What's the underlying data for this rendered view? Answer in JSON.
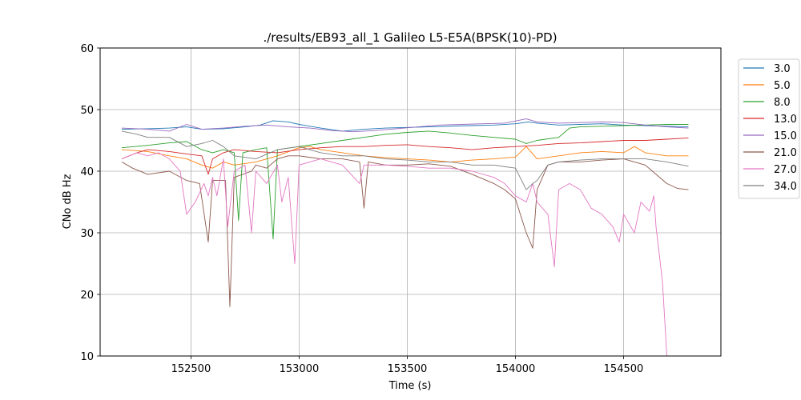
{
  "chart_data": {
    "type": "line",
    "title": "./results/EB93_all_1 Galileo L5-E5A(BPSK(10)-PD)",
    "xlabel": "Time (s)",
    "ylabel": "CNo dB Hz",
    "xlim": [
      152080,
      154950
    ],
    "ylim": [
      10,
      60
    ],
    "xticks": [
      152500,
      153000,
      153500,
      154000,
      154500
    ],
    "xtick_labels": [
      "152500",
      "153000",
      "153500",
      "154000",
      "154500"
    ],
    "yticks": [
      10,
      20,
      30,
      40,
      50,
      60
    ],
    "ytick_labels": [
      "10",
      "20",
      "30",
      "40",
      "50",
      "60"
    ],
    "grid": true,
    "legend_position": "outside-top-right",
    "series": [
      {
        "name": "3.0",
        "color": "#1f77b4",
        "points": [
          [
            152180,
            46.8
          ],
          [
            152300,
            46.9
          ],
          [
            152400,
            47
          ],
          [
            152480,
            47.2
          ],
          [
            152550,
            46.8
          ],
          [
            152650,
            46.9
          ],
          [
            152750,
            47.2
          ],
          [
            152820,
            47.5
          ],
          [
            152880,
            48.2
          ],
          [
            152950,
            48
          ],
          [
            153000,
            47.6
          ],
          [
            153100,
            47
          ],
          [
            153200,
            46.5
          ],
          [
            153300,
            46.8
          ],
          [
            153400,
            47
          ],
          [
            153500,
            47.1
          ],
          [
            153600,
            47.2
          ],
          [
            153700,
            47.3
          ],
          [
            153800,
            47.4
          ],
          [
            153900,
            47.5
          ],
          [
            154000,
            47.7
          ],
          [
            154060,
            48
          ],
          [
            154100,
            47.8
          ],
          [
            154200,
            47.5
          ],
          [
            154300,
            47.6
          ],
          [
            154400,
            47.7
          ],
          [
            154500,
            47.5
          ],
          [
            154600,
            47.4
          ],
          [
            154700,
            47.3
          ],
          [
            154800,
            47.2
          ]
        ]
      },
      {
        "name": "5.0",
        "color": "#ff7f0e",
        "points": [
          [
            152180,
            43.5
          ],
          [
            152300,
            43.2
          ],
          [
            152400,
            42.5
          ],
          [
            152480,
            42
          ],
          [
            152550,
            41
          ],
          [
            152600,
            40.5
          ],
          [
            152650,
            41.5
          ],
          [
            152700,
            41
          ],
          [
            152800,
            41.5
          ],
          [
            152900,
            42.5
          ],
          [
            153000,
            43.8
          ],
          [
            153050,
            44
          ],
          [
            153100,
            43.5
          ],
          [
            153200,
            43
          ],
          [
            153300,
            42.5
          ],
          [
            153400,
            42.2
          ],
          [
            153500,
            42
          ],
          [
            153600,
            41.8
          ],
          [
            153700,
            41.5
          ],
          [
            153800,
            41.8
          ],
          [
            153900,
            42
          ],
          [
            154000,
            42.3
          ],
          [
            154050,
            44
          ],
          [
            154100,
            42
          ],
          [
            154200,
            42.5
          ],
          [
            154300,
            43
          ],
          [
            154400,
            43.2
          ],
          [
            154500,
            43
          ],
          [
            154550,
            44
          ],
          [
            154600,
            43
          ],
          [
            154700,
            42.5
          ],
          [
            154800,
            42.5
          ]
        ]
      },
      {
        "name": "8.0",
        "color": "#2ca02c",
        "points": [
          [
            152180,
            43.8
          ],
          [
            152300,
            44.2
          ],
          [
            152400,
            44.6
          ],
          [
            152480,
            44.8
          ],
          [
            152550,
            43.5
          ],
          [
            152600,
            43
          ],
          [
            152650,
            43.5
          ],
          [
            152700,
            43
          ],
          [
            152720,
            32
          ],
          [
            152740,
            43
          ],
          [
            152800,
            43.5
          ],
          [
            152850,
            43.8
          ],
          [
            152880,
            29
          ],
          [
            152900,
            43.5
          ],
          [
            153000,
            44
          ],
          [
            153100,
            44.5
          ],
          [
            153200,
            45
          ],
          [
            153300,
            45.5
          ],
          [
            153400,
            46
          ],
          [
            153500,
            46.3
          ],
          [
            153600,
            46.5
          ],
          [
            153700,
            46.2
          ],
          [
            153800,
            45.8
          ],
          [
            153900,
            45.5
          ],
          [
            154000,
            45.2
          ],
          [
            154050,
            44.5
          ],
          [
            154100,
            45
          ],
          [
            154200,
            45.5
          ],
          [
            154250,
            47
          ],
          [
            154300,
            47.2
          ],
          [
            154400,
            47.3
          ],
          [
            154500,
            47.4
          ],
          [
            154600,
            47.5
          ],
          [
            154700,
            47.6
          ],
          [
            154800,
            47.6
          ]
        ]
      },
      {
        "name": "13.0",
        "color": "#d62728",
        "points": [
          [
            152180,
            42
          ],
          [
            152250,
            43
          ],
          [
            152300,
            43.5
          ],
          [
            152400,
            43.2
          ],
          [
            152480,
            42.8
          ],
          [
            152550,
            42.5
          ],
          [
            152580,
            39.5
          ],
          [
            152600,
            42
          ],
          [
            152650,
            43
          ],
          [
            152700,
            43.5
          ],
          [
            152800,
            43.2
          ],
          [
            152900,
            43
          ],
          [
            153000,
            43.5
          ],
          [
            153100,
            43.8
          ],
          [
            153200,
            44
          ],
          [
            153300,
            44
          ],
          [
            153400,
            44.2
          ],
          [
            153500,
            44.3
          ],
          [
            153600,
            44
          ],
          [
            153700,
            43.8
          ],
          [
            153800,
            43.5
          ],
          [
            153900,
            43.8
          ],
          [
            154000,
            44
          ],
          [
            154100,
            44.2
          ],
          [
            154200,
            44.5
          ],
          [
            154300,
            44.6
          ],
          [
            154400,
            44.8
          ],
          [
            154500,
            45
          ],
          [
            154600,
            45
          ],
          [
            154700,
            45.2
          ],
          [
            154800,
            45.4
          ]
        ]
      },
      {
        "name": "15.0",
        "color": "#9467bd",
        "points": [
          [
            152180,
            47
          ],
          [
            152300,
            46.8
          ],
          [
            152400,
            46.5
          ],
          [
            152480,
            47.6
          ],
          [
            152550,
            46.8
          ],
          [
            152650,
            47
          ],
          [
            152750,
            47.3
          ],
          [
            152850,
            47.5
          ],
          [
            152950,
            47.2
          ],
          [
            153050,
            47
          ],
          [
            153150,
            46.6
          ],
          [
            153250,
            46.4
          ],
          [
            153350,
            46.6
          ],
          [
            153450,
            46.9
          ],
          [
            153550,
            47.2
          ],
          [
            153650,
            47.5
          ],
          [
            153750,
            47.6
          ],
          [
            153850,
            47.7
          ],
          [
            153950,
            47.8
          ],
          [
            154050,
            48.5
          ],
          [
            154100,
            48
          ],
          [
            154200,
            47.8
          ],
          [
            154300,
            47.9
          ],
          [
            154400,
            48
          ],
          [
            154500,
            47.9
          ],
          [
            154600,
            47.5
          ],
          [
            154700,
            47.2
          ],
          [
            154800,
            47
          ]
        ]
      },
      {
        "name": "21.0",
        "color": "#8c564b",
        "points": [
          [
            152180,
            41.5
          ],
          [
            152230,
            40.5
          ],
          [
            152300,
            39.5
          ],
          [
            152400,
            40
          ],
          [
            152480,
            38.5
          ],
          [
            152540,
            38
          ],
          [
            152580,
            28.5
          ],
          [
            152600,
            38.5
          ],
          [
            152660,
            38.5
          ],
          [
            152680,
            18
          ],
          [
            152700,
            39
          ],
          [
            152780,
            40
          ],
          [
            152800,
            41
          ],
          [
            152850,
            40.5
          ],
          [
            152900,
            42
          ],
          [
            152950,
            42.5
          ],
          [
            153000,
            42.5
          ],
          [
            153100,
            42
          ],
          [
            153200,
            42
          ],
          [
            153280,
            41.5
          ],
          [
            153300,
            34
          ],
          [
            153320,
            41.5
          ],
          [
            153400,
            41
          ],
          [
            153500,
            41
          ],
          [
            153600,
            41.2
          ],
          [
            153700,
            40.8
          ],
          [
            153800,
            39.5
          ],
          [
            153900,
            38
          ],
          [
            153950,
            37
          ],
          [
            154000,
            35.5
          ],
          [
            154050,
            30
          ],
          [
            154080,
            27.5
          ],
          [
            154100,
            37
          ],
          [
            154150,
            41
          ],
          [
            154200,
            41.5
          ],
          [
            154300,
            41.5
          ],
          [
            154400,
            41.8
          ],
          [
            154500,
            42
          ],
          [
            154600,
            41
          ],
          [
            154650,
            39.5
          ],
          [
            154700,
            38
          ],
          [
            154750,
            37.2
          ],
          [
            154800,
            37
          ]
        ]
      },
      {
        "name": "27.0",
        "color": "#e377c2",
        "points": [
          [
            152180,
            42
          ],
          [
            152250,
            43
          ],
          [
            152300,
            42.5
          ],
          [
            152350,
            43
          ],
          [
            152400,
            42
          ],
          [
            152450,
            40
          ],
          [
            152480,
            33
          ],
          [
            152520,
            35
          ],
          [
            152560,
            38
          ],
          [
            152580,
            36
          ],
          [
            152600,
            39
          ],
          [
            152620,
            36
          ],
          [
            152650,
            42
          ],
          [
            152670,
            31
          ],
          [
            152700,
            40
          ],
          [
            152750,
            41
          ],
          [
            152780,
            30
          ],
          [
            152800,
            40
          ],
          [
            152850,
            38
          ],
          [
            152900,
            41
          ],
          [
            152920,
            35
          ],
          [
            152950,
            39
          ],
          [
            152980,
            25
          ],
          [
            153000,
            41
          ],
          [
            153100,
            42
          ],
          [
            153200,
            41
          ],
          [
            153280,
            38
          ],
          [
            153300,
            41
          ],
          [
            153400,
            41
          ],
          [
            153500,
            40.8
          ],
          [
            153600,
            40.5
          ],
          [
            153700,
            40.5
          ],
          [
            153800,
            40
          ],
          [
            153900,
            39
          ],
          [
            153950,
            38
          ],
          [
            154000,
            36
          ],
          [
            154050,
            35
          ],
          [
            154080,
            38
          ],
          [
            154100,
            35
          ],
          [
            154150,
            33
          ],
          [
            154180,
            24.5
          ],
          [
            154200,
            37
          ],
          [
            154250,
            38
          ],
          [
            154300,
            37
          ],
          [
            154350,
            34
          ],
          [
            154400,
            33
          ],
          [
            154450,
            31
          ],
          [
            154480,
            28.5
          ],
          [
            154500,
            33
          ],
          [
            154550,
            30
          ],
          [
            154580,
            35
          ],
          [
            154620,
            33.5
          ],
          [
            154640,
            36
          ],
          [
            154650,
            31
          ],
          [
            154660,
            28
          ],
          [
            154680,
            22
          ],
          [
            154700,
            10
          ]
        ]
      },
      {
        "name": "34.0",
        "color": "#7f7f7f",
        "points": [
          [
            152180,
            46.5
          ],
          [
            152250,
            46
          ],
          [
            152300,
            45.5
          ],
          [
            152400,
            45.5
          ],
          [
            152480,
            44
          ],
          [
            152550,
            44.5
          ],
          [
            152600,
            45
          ],
          [
            152650,
            44
          ],
          [
            152700,
            42.5
          ],
          [
            152800,
            42
          ],
          [
            152900,
            43.5
          ],
          [
            153000,
            44
          ],
          [
            153100,
            43
          ],
          [
            153200,
            42.5
          ],
          [
            153300,
            42.5
          ],
          [
            153400,
            42
          ],
          [
            153500,
            41.8
          ],
          [
            153600,
            41.5
          ],
          [
            153700,
            41.5
          ],
          [
            153800,
            41
          ],
          [
            153900,
            41
          ],
          [
            154000,
            40.5
          ],
          [
            154050,
            37
          ],
          [
            154080,
            38
          ],
          [
            154100,
            38.5
          ],
          [
            154150,
            41
          ],
          [
            154200,
            41.5
          ],
          [
            154300,
            41.8
          ],
          [
            154400,
            42
          ],
          [
            154500,
            42
          ],
          [
            154600,
            42
          ],
          [
            154700,
            41.5
          ],
          [
            154800,
            40.8
          ]
        ]
      }
    ]
  }
}
